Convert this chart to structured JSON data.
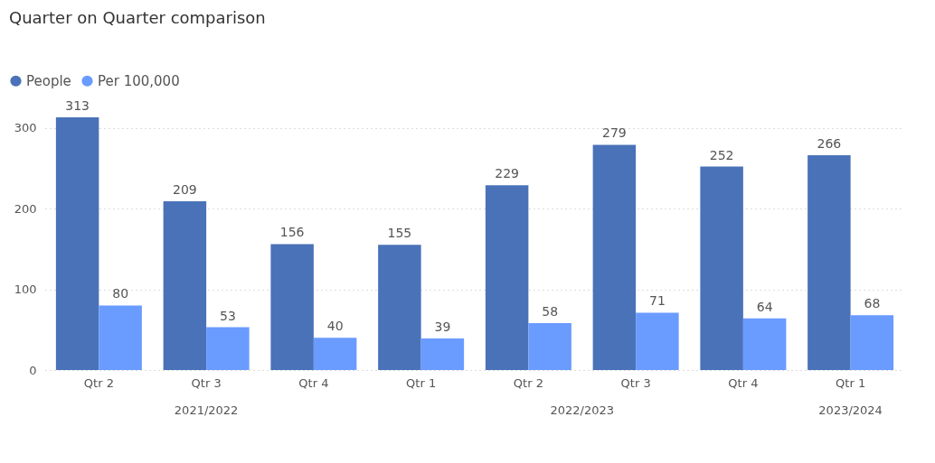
{
  "chart_data": {
    "type": "bar",
    "title": "Quarter on Quarter comparison",
    "categories": [
      "Qtr 2",
      "Qtr 3",
      "Qtr 4",
      "Qtr 1",
      "Qtr 2",
      "Qtr 3",
      "Qtr 4",
      "Qtr 1"
    ],
    "series": [
      {
        "name": "People",
        "color": "#4a72b8",
        "values": [
          313,
          209,
          156,
          155,
          229,
          279,
          252,
          266
        ]
      },
      {
        "name": "Per 100,000",
        "color": "#6a9bff",
        "values": [
          80,
          53,
          40,
          39,
          58,
          71,
          64,
          68
        ]
      }
    ],
    "ylim": [
      0,
      313
    ],
    "yticks": [
      0,
      100,
      200,
      300
    ],
    "grid": "y",
    "legend": "top left",
    "data_labels": true,
    "annotations": [
      "2021/2022",
      "2022/2023",
      "2023/2024"
    ]
  }
}
